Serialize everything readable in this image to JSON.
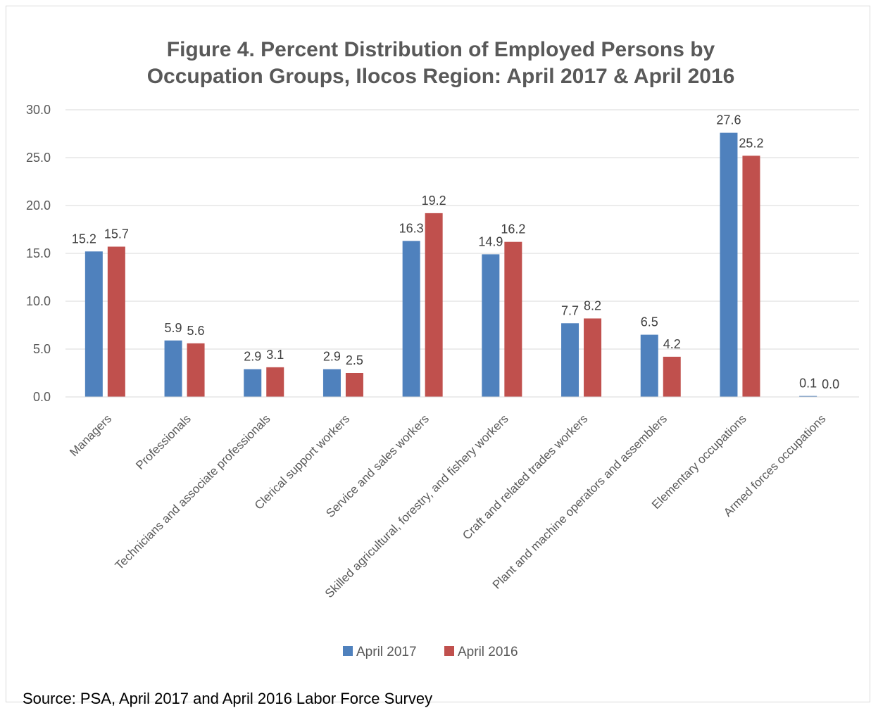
{
  "chart_data": {
    "type": "bar",
    "title_line1": "Figure 4. Percent Distribution of Employed Persons by",
    "title_line2": "Occupation Groups, Ilocos Region: April 2017 & April 2016",
    "categories": [
      "Managers",
      "Professionals",
      "Technicians and associate professionals",
      "Clerical support workers",
      "Service and sales workers",
      "Skilled agricultural, forestry, and fishery workers",
      "Craft and related trades workers",
      "Plant and machine operators and assemblers",
      "Elementary occupations",
      "Armed forces occupations"
    ],
    "series": [
      {
        "name": "April 2017",
        "color": "#4f81bd",
        "values": [
          15.2,
          5.9,
          2.9,
          2.9,
          16.3,
          14.9,
          7.7,
          6.5,
          27.6,
          0.1
        ]
      },
      {
        "name": "April 2016",
        "color": "#c0504d",
        "values": [
          15.7,
          5.6,
          3.1,
          2.5,
          19.2,
          16.2,
          8.2,
          4.2,
          25.2,
          0.0
        ]
      }
    ],
    "ylim": [
      0,
      30
    ],
    "yticks": [
      0,
      5,
      10,
      15,
      20,
      25,
      30
    ],
    "grid": true,
    "legend": "bottom",
    "source": "Source: PSA, April 2017 and April 2016 Labor Force Survey"
  }
}
